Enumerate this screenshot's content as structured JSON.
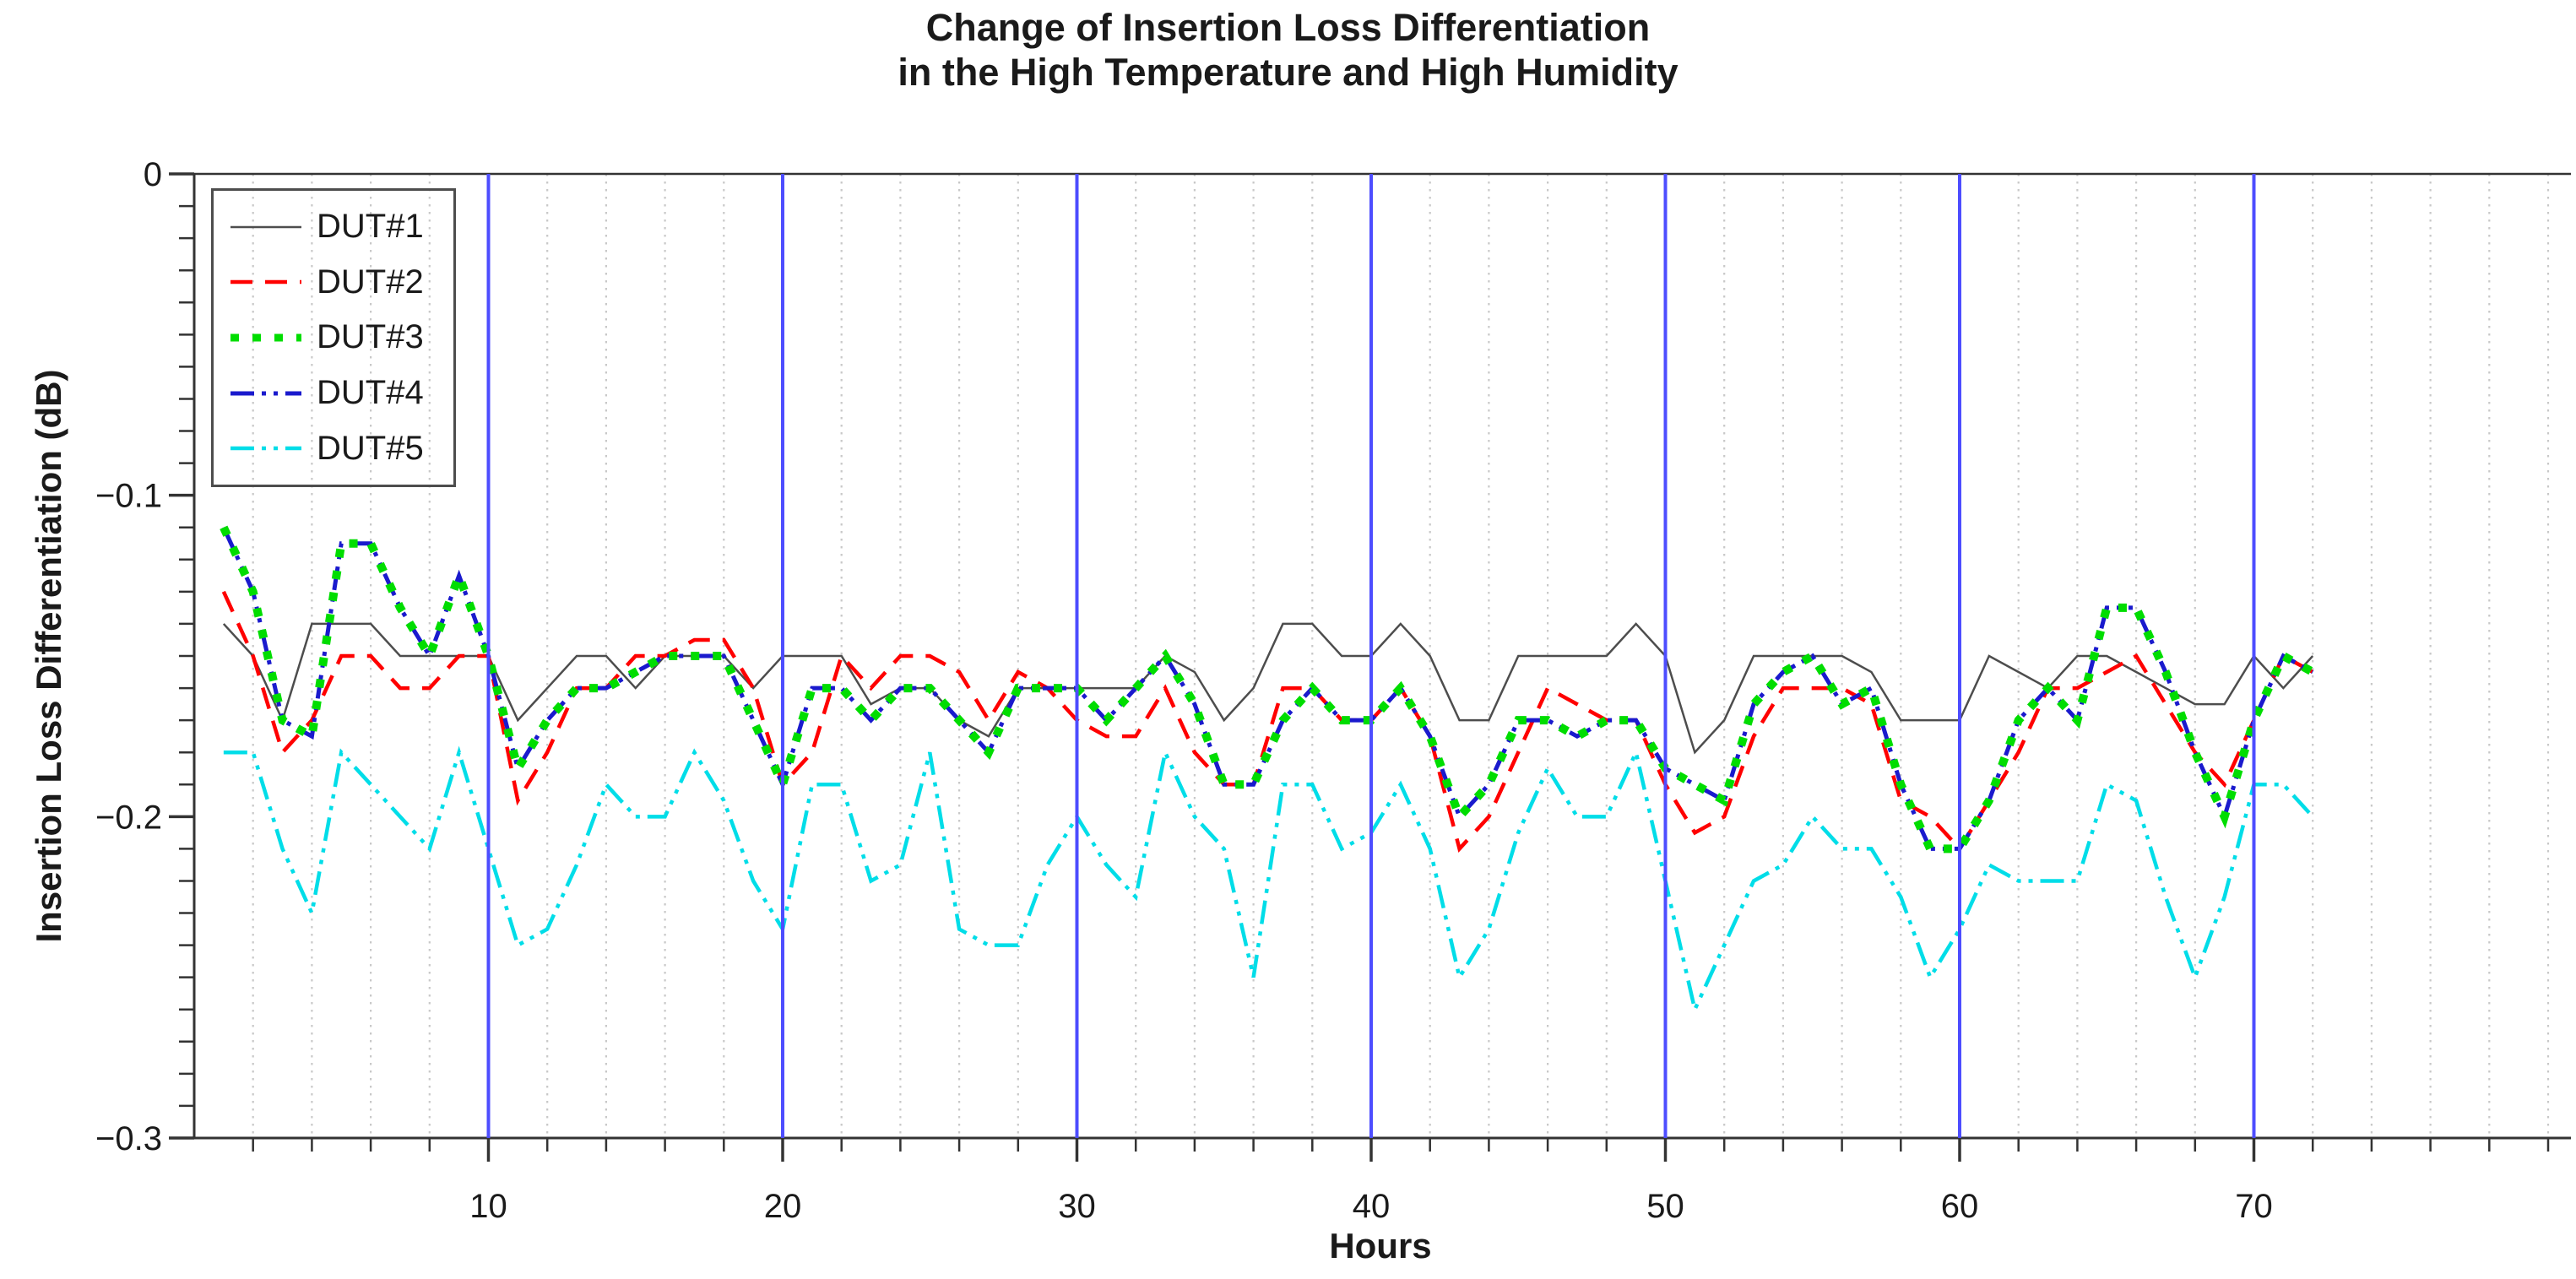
{
  "title": {
    "line1": "Change of Insertion Loss Differentiation",
    "line2": "in the High Temperature and High Humidity"
  },
  "axes": {
    "x_label": "Hours",
    "y_label": "Insertion Loss Differentiation (dB)",
    "x_major_ticks": [
      10,
      20,
      30,
      40,
      50,
      60,
      70
    ],
    "x_minor_step": 2,
    "x_minor_max": 80,
    "x_range": [
      0,
      80.6
    ],
    "y_major_ticks": [
      0,
      -0.1,
      -0.2,
      -0.3
    ],
    "y_major_tick_labels": [
      "0",
      "−0.1",
      "−0.2",
      "−0.3"
    ],
    "y_minor_step": 0.01,
    "y_range": [
      -0.3,
      0
    ],
    "vline_hours": [
      10,
      20,
      30,
      40,
      50,
      60,
      70
    ],
    "grid": "vertical-dotted-every-2h"
  },
  "colors": {
    "vline": "#4d4dff",
    "grid": "#c8c8c8",
    "axis": "#333333",
    "text": "#1a1a1a",
    "background": "#ffffff"
  },
  "legend": {
    "items": [
      "DUT#1",
      "DUT#2",
      "DUT#3",
      "DUT#4",
      "DUT#5"
    ]
  },
  "chart_data": {
    "type": "line",
    "title": "Change of Insertion Loss Differentiation in the High Temperature and High Humidity",
    "xlabel": "Hours",
    "ylabel": "Insertion Loss Differentiation (dB)",
    "xlim": [
      0,
      80.6
    ],
    "ylim": [
      -0.3,
      0
    ],
    "legend_position": "upper-left",
    "x_hours": [
      1,
      2,
      3,
      4,
      5,
      6,
      7,
      8,
      9,
      10,
      11,
      12,
      13,
      14,
      15,
      16,
      17,
      18,
      19,
      20,
      21,
      22,
      23,
      24,
      25,
      26,
      27,
      28,
      29,
      30,
      31,
      32,
      33,
      34,
      35,
      36,
      37,
      38,
      39,
      40,
      41,
      42,
      43,
      44,
      45,
      46,
      47,
      48,
      49,
      50,
      51,
      52,
      53,
      54,
      55,
      56,
      57,
      58,
      59,
      60,
      61,
      62,
      63,
      64,
      65,
      66,
      67,
      68,
      69,
      70,
      71,
      72
    ],
    "series": [
      {
        "name": "DUT#1",
        "color": "#4d4d4d",
        "style": "solid",
        "width": 2.5,
        "values": [
          -0.14,
          -0.15,
          -0.17,
          -0.14,
          -0.14,
          -0.14,
          -0.15,
          -0.15,
          -0.15,
          -0.15,
          -0.17,
          -0.16,
          -0.15,
          -0.15,
          -0.16,
          -0.15,
          -0.15,
          -0.15,
          -0.16,
          -0.15,
          -0.15,
          -0.15,
          -0.165,
          -0.16,
          -0.16,
          -0.17,
          -0.175,
          -0.16,
          -0.16,
          -0.16,
          -0.16,
          -0.16,
          -0.15,
          -0.155,
          -0.17,
          -0.16,
          -0.14,
          -0.14,
          -0.15,
          -0.15,
          -0.14,
          -0.15,
          -0.17,
          -0.17,
          -0.15,
          -0.15,
          -0.15,
          -0.15,
          -0.14,
          -0.15,
          -0.18,
          -0.17,
          -0.15,
          -0.15,
          -0.15,
          -0.15,
          -0.155,
          -0.17,
          -0.17,
          -0.17,
          -0.15,
          -0.155,
          -0.16,
          -0.15,
          -0.15,
          -0.155,
          -0.16,
          -0.165,
          -0.165,
          -0.15,
          -0.16,
          -0.15
        ]
      },
      {
        "name": "DUT#2",
        "color": "#ff0000",
        "style": "dashed",
        "width": 4.5,
        "values": [
          -0.13,
          -0.15,
          -0.18,
          -0.17,
          -0.15,
          -0.15,
          -0.16,
          -0.16,
          -0.15,
          -0.15,
          -0.195,
          -0.18,
          -0.16,
          -0.16,
          -0.15,
          -0.15,
          -0.145,
          -0.145,
          -0.16,
          -0.19,
          -0.18,
          -0.15,
          -0.16,
          -0.15,
          -0.15,
          -0.155,
          -0.17,
          -0.155,
          -0.16,
          -0.17,
          -0.175,
          -0.175,
          -0.16,
          -0.18,
          -0.19,
          -0.19,
          -0.16,
          -0.16,
          -0.17,
          -0.17,
          -0.16,
          -0.175,
          -0.21,
          -0.2,
          -0.18,
          -0.16,
          -0.165,
          -0.17,
          -0.17,
          -0.19,
          -0.205,
          -0.2,
          -0.175,
          -0.16,
          -0.16,
          -0.16,
          -0.165,
          -0.195,
          -0.2,
          -0.21,
          -0.195,
          -0.18,
          -0.16,
          -0.16,
          -0.155,
          -0.15,
          -0.165,
          -0.18,
          -0.19,
          -0.17,
          -0.15,
          -0.155
        ]
      },
      {
        "name": "DUT#3",
        "color": "#00dd00",
        "style": "square-dot",
        "width": 10,
        "values": [
          -0.11,
          -0.13,
          -0.17,
          -0.175,
          -0.115,
          -0.115,
          -0.135,
          -0.15,
          -0.125,
          -0.15,
          -0.185,
          -0.17,
          -0.16,
          -0.16,
          -0.155,
          -0.15,
          -0.15,
          -0.15,
          -0.17,
          -0.19,
          -0.16,
          -0.16,
          -0.17,
          -0.16,
          -0.16,
          -0.17,
          -0.18,
          -0.16,
          -0.16,
          -0.16,
          -0.17,
          -0.16,
          -0.15,
          -0.165,
          -0.19,
          -0.19,
          -0.17,
          -0.16,
          -0.17,
          -0.17,
          -0.16,
          -0.175,
          -0.2,
          -0.19,
          -0.17,
          -0.17,
          -0.175,
          -0.17,
          -0.17,
          -0.185,
          -0.19,
          -0.195,
          -0.165,
          -0.155,
          -0.15,
          -0.165,
          -0.16,
          -0.19,
          -0.21,
          -0.21,
          -0.195,
          -0.17,
          -0.16,
          -0.17,
          -0.135,
          -0.135,
          -0.155,
          -0.18,
          -0.2,
          -0.17,
          -0.15,
          -0.155
        ]
      },
      {
        "name": "DUT#4",
        "color": "#1a1acd",
        "style": "dash-dot-dot",
        "width": 5,
        "values": [
          -0.11,
          -0.13,
          -0.17,
          -0.175,
          -0.115,
          -0.115,
          -0.135,
          -0.15,
          -0.125,
          -0.15,
          -0.185,
          -0.17,
          -0.16,
          -0.16,
          -0.155,
          -0.15,
          -0.15,
          -0.15,
          -0.17,
          -0.19,
          -0.16,
          -0.16,
          -0.17,
          -0.16,
          -0.16,
          -0.17,
          -0.18,
          -0.16,
          -0.16,
          -0.16,
          -0.17,
          -0.16,
          -0.15,
          -0.165,
          -0.19,
          -0.19,
          -0.17,
          -0.16,
          -0.17,
          -0.17,
          -0.16,
          -0.175,
          -0.2,
          -0.19,
          -0.17,
          -0.17,
          -0.175,
          -0.17,
          -0.17,
          -0.185,
          -0.19,
          -0.195,
          -0.165,
          -0.155,
          -0.15,
          -0.165,
          -0.16,
          -0.19,
          -0.21,
          -0.21,
          -0.195,
          -0.17,
          -0.16,
          -0.17,
          -0.135,
          -0.135,
          -0.155,
          -0.18,
          -0.2,
          -0.17,
          -0.15,
          -0.155
        ]
      },
      {
        "name": "DUT#5",
        "color": "#00dde8",
        "style": "dash-dot-dot",
        "width": 4.5,
        "values": [
          -0.18,
          -0.18,
          -0.21,
          -0.23,
          -0.18,
          -0.19,
          -0.2,
          -0.21,
          -0.18,
          -0.21,
          -0.24,
          -0.235,
          -0.215,
          -0.19,
          -0.2,
          -0.2,
          -0.18,
          -0.195,
          -0.22,
          -0.235,
          -0.19,
          -0.19,
          -0.22,
          -0.215,
          -0.18,
          -0.235,
          -0.24,
          -0.24,
          -0.215,
          -0.2,
          -0.215,
          -0.225,
          -0.18,
          -0.2,
          -0.21,
          -0.25,
          -0.19,
          -0.19,
          -0.21,
          -0.205,
          -0.19,
          -0.21,
          -0.25,
          -0.235,
          -0.205,
          -0.185,
          -0.2,
          -0.2,
          -0.18,
          -0.22,
          -0.26,
          -0.24,
          -0.22,
          -0.215,
          -0.2,
          -0.21,
          -0.21,
          -0.225,
          -0.25,
          -0.235,
          -0.215,
          -0.22,
          -0.22,
          -0.22,
          -0.19,
          -0.195,
          -0.225,
          -0.25,
          -0.225,
          -0.19,
          -0.19,
          -0.2
        ]
      }
    ]
  }
}
